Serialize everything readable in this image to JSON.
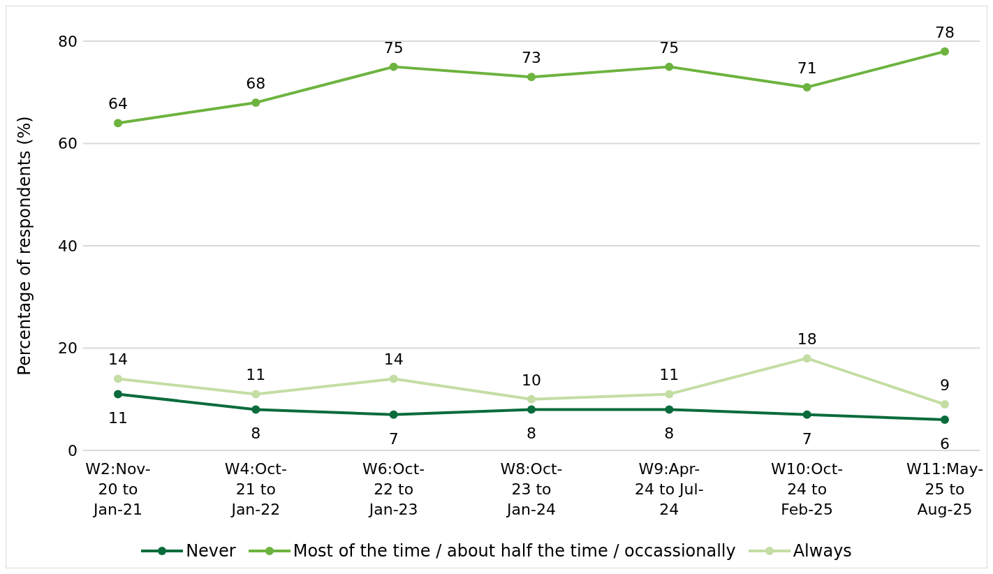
{
  "chart_data": {
    "type": "line",
    "ylabel": "Percentage of respondents (%)",
    "categories": [
      "W2:Nov-\n20 to\nJan-21",
      "W4:Oct-\n21 to\nJan-22",
      "W6:Oct-\n22 to\nJan-23",
      "W8:Oct-\n23 to\nJan-24",
      "W9:Apr-\n24 to Jul-\n24",
      "W10:Oct-\n24 to\nFeb-25",
      "W11:May-\n25 to\nAug-25"
    ],
    "ylim": [
      0,
      80
    ],
    "yticks": [
      0,
      20,
      40,
      60,
      80
    ],
    "series": [
      {
        "name": "Never",
        "color": "#0a6b3c",
        "values": [
          11,
          8,
          7,
          8,
          8,
          7,
          6
        ]
      },
      {
        "name": "Most of the time / about half the time / occassionally",
        "color": "#6db33f",
        "values": [
          64,
          68,
          75,
          73,
          75,
          71,
          78
        ]
      },
      {
        "name": "Always",
        "color": "#c4dda4",
        "values": [
          14,
          11,
          14,
          10,
          11,
          18,
          9
        ]
      }
    ],
    "grid": "y",
    "legend": "bottom",
    "marker": "circle",
    "line_style": "solid",
    "data_labels": true
  }
}
